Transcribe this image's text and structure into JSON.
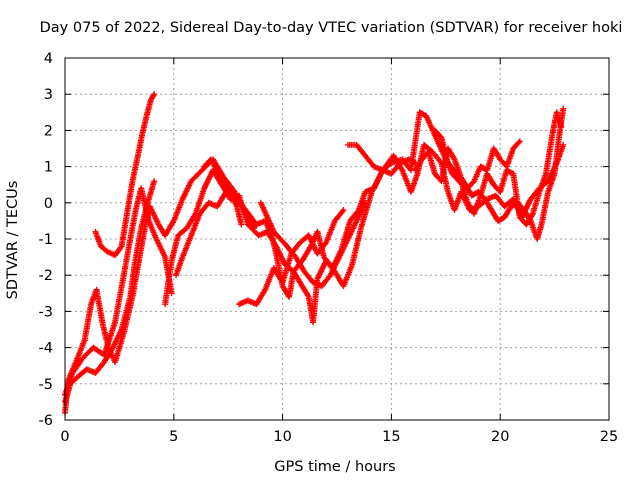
{
  "chart_data": {
    "type": "scatter",
    "title": "Day 075 of 2022, Sidereal Day-to-day VTEC variation (SDTVAR) for receiver hoki",
    "xlabel": "GPS time / hours",
    "ylabel": "SDTVAR / TECUs",
    "xlim": [
      0,
      25
    ],
    "ylim": [
      -6,
      4
    ],
    "xticks": [
      0,
      5,
      10,
      15,
      20,
      25
    ],
    "yticks": [
      -6,
      -5,
      -4,
      -3,
      -2,
      -1,
      0,
      1,
      2,
      3,
      4
    ],
    "grid": true,
    "marker": "plus",
    "color": "#ff0000",
    "series": [
      {
        "name": "track-1",
        "points": [
          [
            0.0,
            -5.8
          ],
          [
            0.15,
            -4.9
          ],
          [
            0.5,
            -4.4
          ],
          [
            0.9,
            -3.8
          ],
          [
            1.2,
            -2.8
          ],
          [
            1.45,
            -2.4
          ],
          [
            1.75,
            -3.4
          ],
          [
            2.0,
            -4.0
          ],
          [
            2.3,
            -4.4
          ],
          [
            2.7,
            -3.6
          ],
          [
            3.1,
            -2.6
          ],
          [
            3.4,
            -1.6
          ],
          [
            3.7,
            -0.6
          ],
          [
            3.9,
            -0.1
          ],
          [
            4.3,
            -0.6
          ],
          [
            4.6,
            -0.9
          ],
          [
            5.0,
            -0.5
          ],
          [
            5.4,
            0.1
          ],
          [
            5.8,
            0.6
          ],
          [
            6.3,
            0.9
          ],
          [
            6.8,
            1.2
          ],
          [
            7.3,
            0.7
          ],
          [
            7.8,
            0.3
          ],
          [
            8.3,
            -0.3
          ],
          [
            8.7,
            -0.7
          ]
        ]
      },
      {
        "name": "track-2",
        "points": [
          [
            0.0,
            -5.3
          ],
          [
            0.35,
            -4.7
          ],
          [
            0.8,
            -4.3
          ],
          [
            1.3,
            -4.0
          ],
          [
            1.8,
            -4.2
          ],
          [
            2.3,
            -3.3
          ],
          [
            2.7,
            -2.0
          ],
          [
            3.0,
            -1.0
          ],
          [
            3.25,
            -0.2
          ],
          [
            3.5,
            0.4
          ],
          [
            3.85,
            -0.5
          ],
          [
            4.2,
            -1.0
          ],
          [
            4.6,
            -1.5
          ],
          [
            4.9,
            -2.5
          ]
        ]
      },
      {
        "name": "track-3",
        "points": [
          [
            0.0,
            -5.5
          ],
          [
            0.25,
            -5.0
          ],
          [
            0.6,
            -4.8
          ],
          [
            1.0,
            -4.6
          ],
          [
            1.4,
            -4.7
          ],
          [
            1.8,
            -4.4
          ],
          [
            2.2,
            -4.0
          ],
          [
            2.6,
            -3.5
          ],
          [
            3.0,
            -2.6
          ],
          [
            3.2,
            -1.7
          ],
          [
            3.5,
            -0.7
          ],
          [
            3.8,
            0.0
          ],
          [
            4.1,
            0.6
          ]
        ]
      },
      {
        "name": "track-4",
        "points": [
          [
            1.4,
            -0.8
          ],
          [
            1.65,
            -1.2
          ],
          [
            1.95,
            -1.35
          ],
          [
            2.3,
            -1.45
          ],
          [
            2.6,
            -1.2
          ],
          [
            2.85,
            -0.3
          ],
          [
            3.1,
            0.6
          ],
          [
            3.35,
            1.3
          ],
          [
            3.55,
            1.9
          ],
          [
            3.75,
            2.4
          ],
          [
            3.95,
            2.85
          ],
          [
            4.1,
            3.0
          ]
        ]
      },
      {
        "name": "track-5",
        "points": [
          [
            4.6,
            -2.8
          ],
          [
            4.9,
            -1.6
          ],
          [
            5.2,
            -0.9
          ],
          [
            5.6,
            -0.7
          ],
          [
            6.0,
            -0.3
          ],
          [
            6.4,
            0.4
          ],
          [
            6.8,
            0.9
          ],
          [
            7.2,
            0.5
          ],
          [
            7.6,
            0.1
          ],
          [
            8.0,
            0.2
          ],
          [
            8.4,
            -0.6
          ],
          [
            8.9,
            -0.9
          ],
          [
            9.3,
            -0.8
          ],
          [
            9.7,
            -1.2
          ],
          [
            10.1,
            -1.7
          ],
          [
            10.5,
            -1.9
          ],
          [
            10.9,
            -1.6
          ],
          [
            11.3,
            -1.2
          ],
          [
            11.6,
            -0.8
          ],
          [
            11.9,
            -1.5
          ],
          [
            12.3,
            -1.8
          ],
          [
            12.7,
            -1.3
          ],
          [
            13.1,
            -0.5
          ],
          [
            13.5,
            -0.2
          ],
          [
            13.8,
            0.3
          ],
          [
            14.2,
            0.4
          ],
          [
            14.6,
            0.9
          ],
          [
            15.0,
            0.8
          ],
          [
            15.4,
            1.1
          ],
          [
            15.8,
            1.2
          ],
          [
            16.1,
            1.1
          ]
        ]
      },
      {
        "name": "track-6",
        "points": [
          [
            5.1,
            -2.0
          ],
          [
            5.4,
            -1.5
          ],
          [
            5.8,
            -0.9
          ],
          [
            6.2,
            -0.3
          ],
          [
            6.6,
            0.0
          ],
          [
            7.0,
            -0.1
          ],
          [
            7.4,
            0.3
          ],
          [
            7.8,
            0.2
          ],
          [
            8.3,
            -0.2
          ],
          [
            8.8,
            -0.6
          ],
          [
            9.2,
            -0.5
          ],
          [
            9.5,
            -0.9
          ],
          [
            9.7,
            -1.4
          ],
          [
            10.0,
            -2.3
          ],
          [
            10.3,
            -2.6
          ],
          [
            10.5,
            -1.9
          ],
          [
            10.8,
            -2.2
          ],
          [
            11.2,
            -2.6
          ],
          [
            11.4,
            -3.3
          ],
          [
            11.6,
            -2.1
          ],
          [
            12.0,
            -1.6
          ],
          [
            12.4,
            -1.9
          ],
          [
            12.8,
            -2.3
          ],
          [
            13.2,
            -1.7
          ],
          [
            13.6,
            -0.7
          ],
          [
            14.1,
            0.3
          ],
          [
            14.6,
            0.9
          ],
          [
            15.1,
            1.3
          ],
          [
            15.5,
            0.9
          ],
          [
            15.9,
            0.3
          ],
          [
            16.2,
            0.8
          ],
          [
            16.5,
            1.6
          ],
          [
            16.9,
            1.4
          ],
          [
            17.3,
            1.1
          ],
          [
            17.6,
            0.3
          ],
          [
            17.9,
            -0.2
          ],
          [
            18.2,
            0.3
          ],
          [
            18.6,
            -0.2
          ],
          [
            19.0,
            -0.1
          ],
          [
            19.4,
            0.1
          ],
          [
            19.8,
            0.2
          ],
          [
            20.2,
            -0.1
          ],
          [
            20.6,
            0.1
          ],
          [
            21.0,
            -0.4
          ],
          [
            21.4,
            0.1
          ],
          [
            21.8,
            0.4
          ],
          [
            22.2,
            0.6
          ],
          [
            22.6,
            1.1
          ],
          [
            22.9,
            1.6
          ]
        ]
      },
      {
        "name": "track-7",
        "points": [
          [
            6.4,
            1.0
          ],
          [
            6.7,
            1.2
          ],
          [
            7.1,
            0.8
          ],
          [
            7.5,
            0.4
          ],
          [
            7.9,
            -0.1
          ],
          [
            8.1,
            -0.6
          ]
        ]
      },
      {
        "name": "track-8",
        "points": [
          [
            8.0,
            -2.8
          ],
          [
            8.4,
            -2.7
          ],
          [
            8.8,
            -2.8
          ],
          [
            9.2,
            -2.4
          ],
          [
            9.6,
            -1.8
          ],
          [
            10.0,
            -2.2
          ],
          [
            10.4,
            -1.4
          ],
          [
            10.8,
            -1.1
          ],
          [
            11.2,
            -0.9
          ],
          [
            11.6,
            -1.4
          ],
          [
            12.0,
            -1.1
          ],
          [
            12.4,
            -0.5
          ],
          [
            12.8,
            -0.2
          ]
        ]
      },
      {
        "name": "track-9",
        "points": [
          [
            9.0,
            0.0
          ],
          [
            9.3,
            -0.4
          ],
          [
            9.6,
            -0.8
          ],
          [
            9.9,
            -1.0
          ],
          [
            10.2,
            -1.2
          ],
          [
            10.6,
            -1.5
          ],
          [
            11.0,
            -1.9
          ],
          [
            11.4,
            -2.2
          ],
          [
            11.8,
            -2.3
          ],
          [
            12.2,
            -2.0
          ],
          [
            12.6,
            -1.5
          ],
          [
            13.0,
            -1.0
          ],
          [
            13.4,
            -0.5
          ],
          [
            13.8,
            0.0
          ]
        ]
      },
      {
        "name": "track-10",
        "points": [
          [
            13.0,
            1.6
          ],
          [
            13.4,
            1.6
          ],
          [
            13.8,
            1.3
          ],
          [
            14.2,
            1.0
          ],
          [
            14.6,
            0.9
          ],
          [
            15.0,
            1.1
          ],
          [
            15.5,
            1.2
          ],
          [
            15.9,
            0.9
          ],
          [
            16.3,
            2.5
          ],
          [
            16.6,
            2.4
          ],
          [
            16.9,
            2.0
          ],
          [
            17.2,
            1.6
          ],
          [
            17.5,
            1.2
          ],
          [
            17.8,
            0.8
          ],
          [
            18.1,
            0.6
          ],
          [
            18.4,
            0.5
          ],
          [
            18.7,
            0.2
          ],
          [
            19.0,
            0.3
          ],
          [
            19.3,
            0.1
          ],
          [
            19.6,
            -0.2
          ],
          [
            19.9,
            -0.5
          ],
          [
            20.2,
            -0.4
          ],
          [
            20.5,
            -0.1
          ],
          [
            20.8,
            0.0
          ],
          [
            21.1,
            -0.2
          ],
          [
            21.4,
            -0.5
          ],
          [
            21.7,
            -1.0
          ],
          [
            21.9,
            -0.6
          ],
          [
            22.2,
            0.3
          ],
          [
            22.5,
            0.8
          ],
          [
            22.7,
            1.8
          ],
          [
            22.9,
            2.6
          ]
        ]
      },
      {
        "name": "track-11",
        "points": [
          [
            16.1,
            0.9
          ],
          [
            16.4,
            1.2
          ],
          [
            16.7,
            1.4
          ],
          [
            17.0,
            0.8
          ],
          [
            17.3,
            0.6
          ],
          [
            17.6,
            1.5
          ],
          [
            17.9,
            1.2
          ],
          [
            18.2,
            0.7
          ],
          [
            18.5,
            0.4
          ],
          [
            18.8,
            0.6
          ],
          [
            19.1,
            1.0
          ],
          [
            19.4,
            0.9
          ],
          [
            19.7,
            1.5
          ],
          [
            20.0,
            1.2
          ],
          [
            20.3,
            1.0
          ],
          [
            20.6,
            1.5
          ],
          [
            20.9,
            1.7
          ]
        ]
      },
      {
        "name": "track-12",
        "points": [
          [
            17.0,
            2.0
          ],
          [
            17.3,
            1.8
          ],
          [
            17.6,
            1.1
          ],
          [
            17.9,
            0.9
          ],
          [
            18.2,
            0.6
          ],
          [
            18.5,
            0.0
          ],
          [
            18.8,
            -0.3
          ],
          [
            19.1,
            0.2
          ],
          [
            19.4,
            0.8
          ],
          [
            19.7,
            0.5
          ],
          [
            20.0,
            0.3
          ],
          [
            20.3,
            0.9
          ],
          [
            20.6,
            0.8
          ],
          [
            20.9,
            -0.4
          ],
          [
            21.2,
            -0.6
          ],
          [
            21.5,
            -0.3
          ],
          [
            21.8,
            0.3
          ],
          [
            22.1,
            0.8
          ],
          [
            22.4,
            1.9
          ],
          [
            22.6,
            2.5
          ],
          [
            22.8,
            2.1
          ]
        ]
      }
    ]
  }
}
